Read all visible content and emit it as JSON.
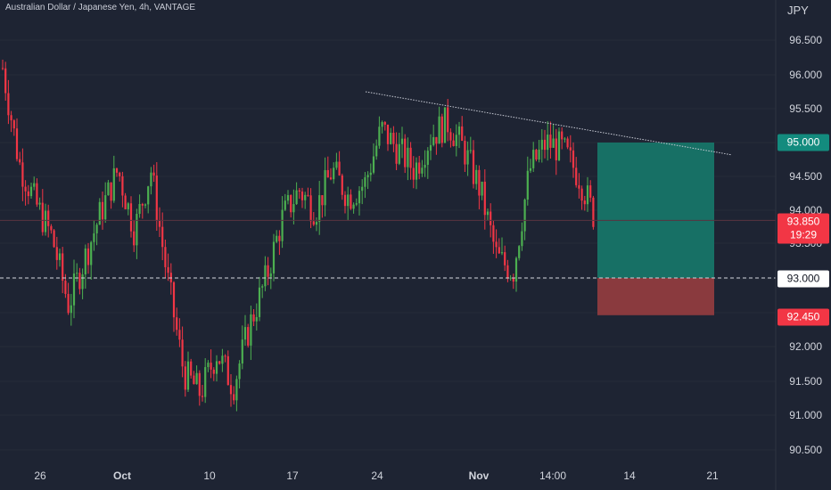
{
  "header": {
    "title": "Australian Dollar / Japanese Yen, 4h, VANTAGE",
    "currency": "JPY"
  },
  "price_axis": {
    "ticks": [
      "96.500",
      "96.000",
      "95.500",
      "94.500",
      "94.000",
      "93.500",
      "92.000",
      "91.500",
      "91.000",
      "90.500"
    ]
  },
  "time_axis": {
    "labels": [
      {
        "text": "26",
        "bold": false
      },
      {
        "text": "Oct",
        "bold": true
      },
      {
        "text": "10",
        "bold": false
      },
      {
        "text": "17",
        "bold": false
      },
      {
        "text": "24",
        "bold": false
      },
      {
        "text": "Nov",
        "bold": true
      },
      {
        "text": "14:00",
        "bold": false
      },
      {
        "text": "14",
        "bold": false
      },
      {
        "text": "21",
        "bold": false
      }
    ]
  },
  "price_tags": {
    "target": "95.000",
    "entry": "93.000",
    "current_price": "93.850",
    "countdown": "19:29",
    "stop": "92.450"
  },
  "colors": {
    "background": "#1e2433",
    "up": "#4caf50",
    "down": "#f23645",
    "target_zone": "#177065",
    "stop_zone": "#8a3a3e",
    "trendline": "#c9ccd6"
  },
  "chart_data": {
    "type": "candlestick",
    "symbol": "AUDJPY",
    "timeframe": "4h",
    "y_range": [
      90.2,
      97.0
    ],
    "price_path": [
      {
        "x": "26 Sep",
        "y": 96.1
      },
      {
        "x": "27 Sep",
        "y": 94.7
      },
      {
        "x": "28 Sep",
        "y": 94.1
      },
      {
        "x": "29 Sep",
        "y": 93.6
      },
      {
        "x": "30 Sep",
        "y": 92.6
      },
      {
        "x": "Oct",
        "y": 93.3
      },
      {
        "x": "3 Oct",
        "y": 94.0
      },
      {
        "x": "4 Oct",
        "y": 94.6
      },
      {
        "x": "5 Oct",
        "y": 93.7
      },
      {
        "x": "6 Oct",
        "y": 94.6
      },
      {
        "x": "7 Oct",
        "y": 93.0
      },
      {
        "x": "10 Oct",
        "y": 91.6
      },
      {
        "x": "11 Oct",
        "y": 91.3
      },
      {
        "x": "12 Oct",
        "y": 91.9
      },
      {
        "x": "13 Oct",
        "y": 91.4
      },
      {
        "x": "14 Oct",
        "y": 92.3
      },
      {
        "x": "17 Oct",
        "y": 93.0
      },
      {
        "x": "18 Oct",
        "y": 93.9
      },
      {
        "x": "19 Oct",
        "y": 94.3
      },
      {
        "x": "20 Oct",
        "y": 94.0
      },
      {
        "x": "21 Oct",
        "y": 94.6
      },
      {
        "x": "24 Oct",
        "y": 94.2
      },
      {
        "x": "25 Oct",
        "y": 94.4
      },
      {
        "x": "26 Oct",
        "y": 95.2
      },
      {
        "x": "27 Oct",
        "y": 94.9
      },
      {
        "x": "28 Oct",
        "y": 94.6
      },
      {
        "x": "31 Oct",
        "y": 95.1
      },
      {
        "x": "Nov",
        "y": 95.3
      },
      {
        "x": "2 Nov",
        "y": 94.9
      },
      {
        "x": "3 Nov",
        "y": 94.3
      },
      {
        "x": "4 Nov",
        "y": 93.3
      },
      {
        "x": "7 Nov",
        "y": 93.1
      },
      {
        "x": "8 Nov",
        "y": 94.6
      },
      {
        "x": "9 Nov",
        "y": 95.0
      },
      {
        "x": "10 Nov",
        "y": 94.9
      },
      {
        "x": "11 Nov",
        "y": 94.5
      },
      {
        "x": "12 Nov",
        "y": 93.85
      }
    ],
    "trendline": [
      {
        "x": "21 Oct",
        "y": 95.75
      },
      {
        "x": "21 Nov",
        "y": 94.82
      }
    ],
    "horizontal_line": 93.0,
    "current_price_line": 93.85,
    "position": {
      "type": "long",
      "entry": 93.0,
      "target": 95.0,
      "stop": 92.45,
      "start": "12 Nov",
      "end": "21 Nov"
    }
  }
}
